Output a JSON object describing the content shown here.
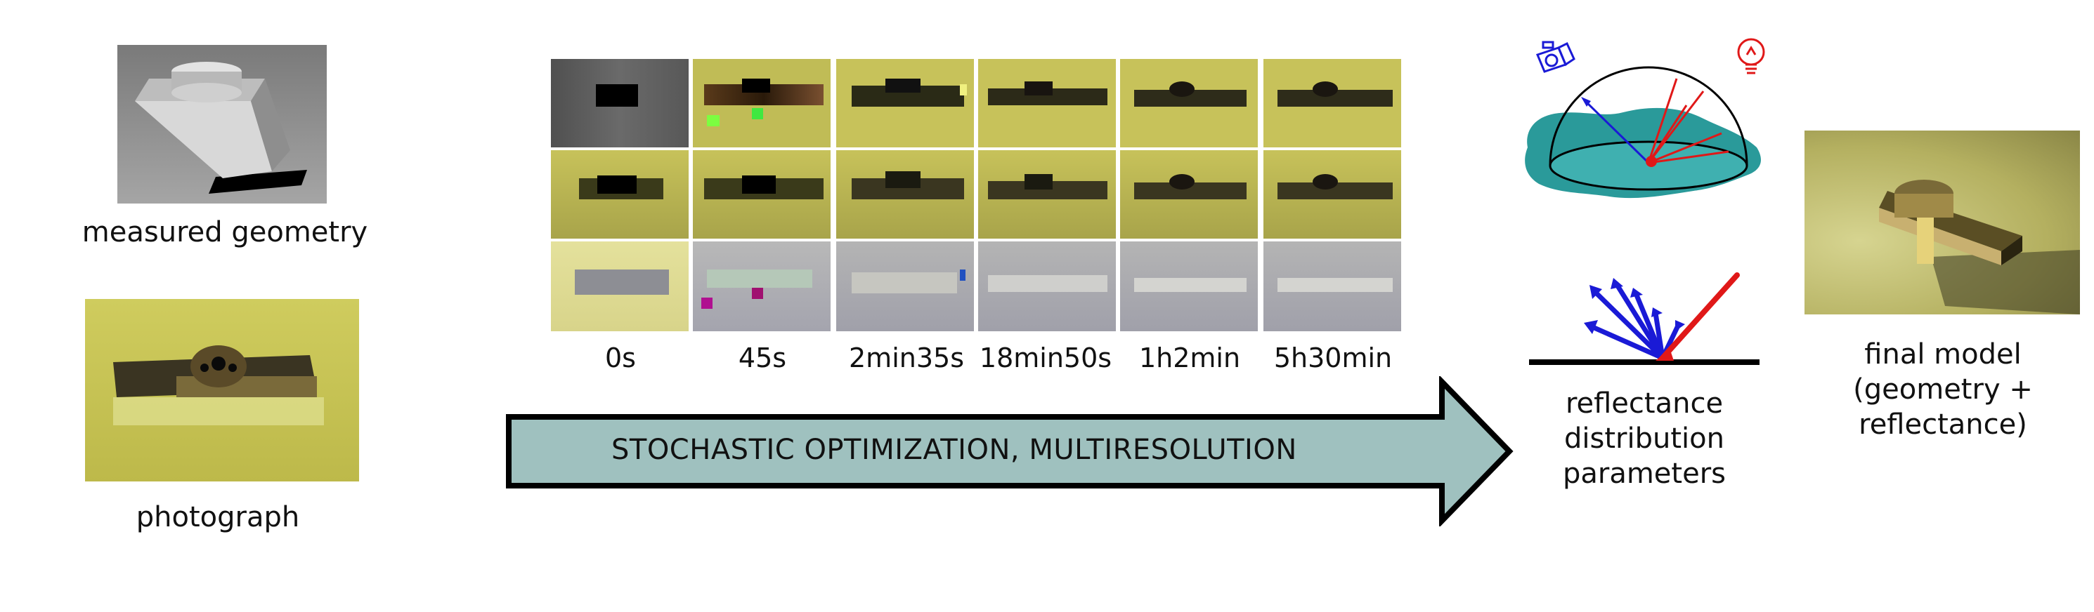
{
  "inputs": {
    "geometry_caption": "measured geometry",
    "photo_caption": "photograph"
  },
  "timeline": {
    "times": [
      "0s",
      "45s",
      "2min35s",
      "18min50s",
      "1h2min",
      "5h30min"
    ]
  },
  "process": {
    "label": "STOCHASTIC OPTIMIZATION, MULTIRESOLUTION",
    "arrow_fill": "#9fc1bf"
  },
  "brdf": {
    "caption_line1": "reflectance",
    "caption_line2": "distribution",
    "caption_line3": "parameters",
    "camera_color": "#1a1ad6",
    "light_color": "#e01818",
    "surface_color": "#2a9a9a"
  },
  "output": {
    "caption_line1": "final model",
    "caption_line2": "(geometry +",
    "caption_line3": "reflectance)"
  },
  "colors": {
    "background_yellow": "#c8c45a",
    "residual_gray": "#a8a8b0"
  }
}
